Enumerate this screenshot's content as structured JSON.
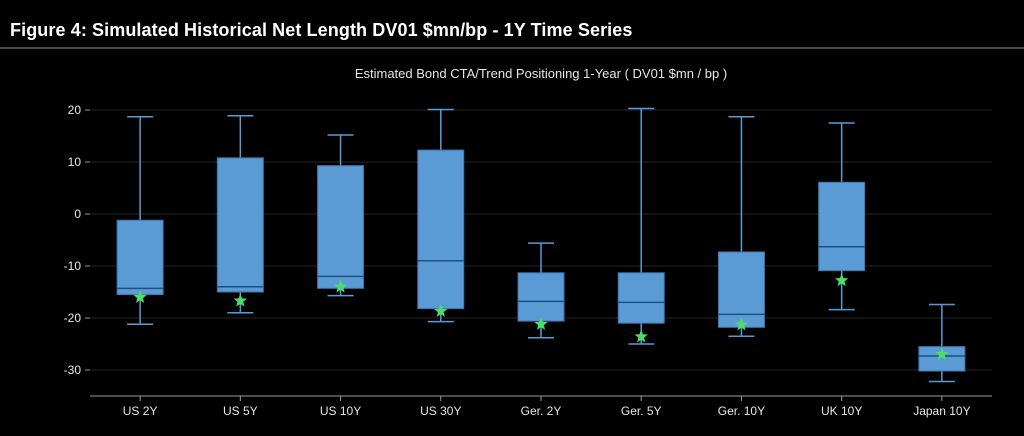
{
  "figure": {
    "title": "Figure 4: Simulated Historical Net Length DV01 $mn/bp - 1Y Time Series"
  },
  "colors": {
    "background": "#000000",
    "box_fill": "#5b9bd5",
    "box_edge": "#3d72a8",
    "whisker": "#5b9bd5",
    "median": "#1f4f80",
    "marker": "#4ddc6a",
    "grid": "#262626",
    "axis": "#9a9a9a"
  },
  "chart_data": {
    "type": "box",
    "title": "Estimated Bond CTA/Trend Positioning 1-Year ( DV01 $mn / bp )",
    "xlabel": "",
    "ylabel": "",
    "ylim": [
      -34,
      22
    ],
    "yticks": [
      20,
      10,
      0,
      -10,
      -20,
      -30
    ],
    "grid": true,
    "legend": "none",
    "marker_shape": "star",
    "categories": [
      "US 2Y",
      "US 5Y",
      "US 10Y",
      "US 30Y",
      "Ger. 2Y",
      "Ger. 5Y",
      "Ger. 10Y",
      "UK 10Y",
      "Japan 10Y"
    ],
    "boxes": [
      {
        "min": -21.2,
        "q1": -15.5,
        "median": -14.3,
        "q3": -1.2,
        "max": 18.7,
        "current": -16.0
      },
      {
        "min": -19.0,
        "q1": -15.0,
        "median": -14.0,
        "q3": 10.8,
        "max": 18.9,
        "current": -16.7
      },
      {
        "min": -15.7,
        "q1": -14.3,
        "median": -12.0,
        "q3": 9.3,
        "max": 15.2,
        "current": -14.0
      },
      {
        "min": -20.7,
        "q1": -18.2,
        "median": -9.0,
        "q3": 12.3,
        "max": 20.1,
        "current": -18.7
      },
      {
        "min": -23.8,
        "q1": -20.6,
        "median": -16.8,
        "q3": -11.3,
        "max": -5.6,
        "current": -21.2
      },
      {
        "min": -25.0,
        "q1": -21.0,
        "median": -17.0,
        "q3": -11.3,
        "max": 20.3,
        "current": -23.6
      },
      {
        "min": -23.5,
        "q1": -21.8,
        "median": -19.3,
        "q3": -7.3,
        "max": 18.7,
        "current": -21.3
      },
      {
        "min": -18.4,
        "q1": -10.9,
        "median": -6.3,
        "q3": 6.1,
        "max": 17.5,
        "current": -12.8
      },
      {
        "min": -32.2,
        "q1": -30.2,
        "median": -27.3,
        "q3": -25.5,
        "max": -17.4,
        "current": -27.0
      }
    ]
  }
}
